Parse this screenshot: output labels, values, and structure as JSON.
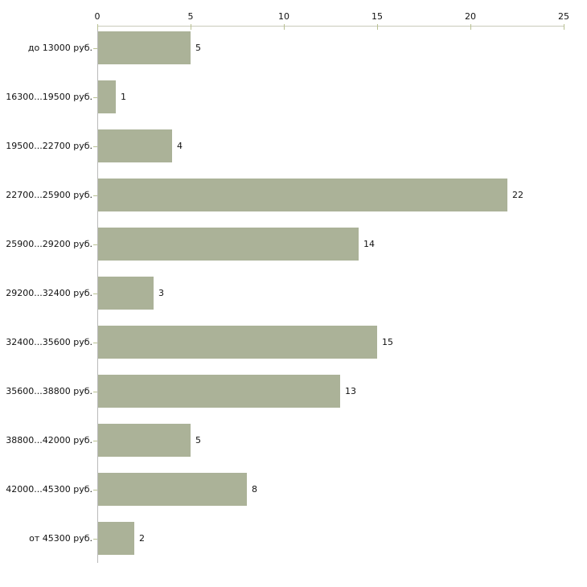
{
  "chart_data": {
    "type": "bar",
    "orientation": "horizontal",
    "categories": [
      "до 13000 руб.",
      "16300...19500 руб.",
      "19500...22700 руб.",
      "22700...25900 руб.",
      "25900...29200 руб.",
      "29200...32400 руб.",
      "32400...35600 руб.",
      "35600...38800 руб.",
      "38800...42000 руб.",
      "42000...45300 руб.",
      "от 45300 руб."
    ],
    "values": [
      5,
      1,
      4,
      22,
      14,
      3,
      15,
      13,
      5,
      8,
      2
    ],
    "xticks": [
      0,
      5,
      10,
      15,
      20,
      25
    ],
    "xlim": [
      0,
      25
    ],
    "x_axis_position": "top",
    "grid": false,
    "colors": {
      "bar": "#abb298",
      "x_axis_line": "#c9cabb",
      "y_axis_line": "#b9b9b9",
      "tick_mark": "#b9c193",
      "text": "#111111",
      "background": "#ffffff"
    }
  }
}
